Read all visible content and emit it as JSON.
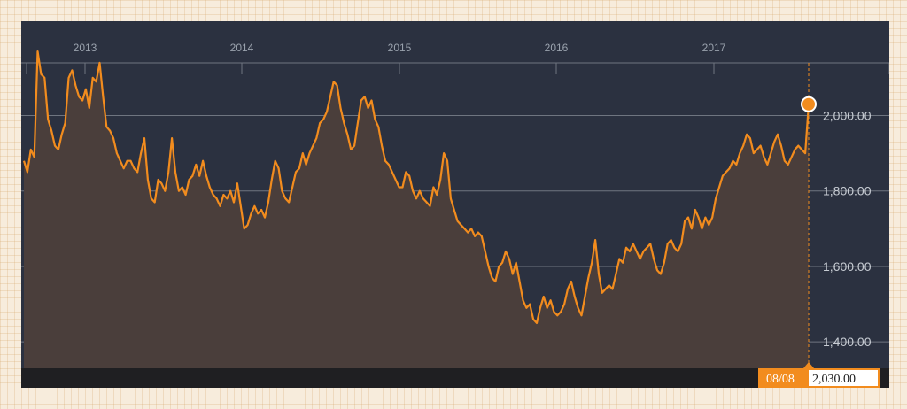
{
  "colors": {
    "panel_bg": "#2b3140",
    "axis_band": "#1f1f22",
    "line": "#f28c1e",
    "fill": "#4a3e3b",
    "grid": "#6f7580",
    "readout_bg": "#f28c1e"
  },
  "chart_data": {
    "type": "area",
    "title": "",
    "xlabel": "",
    "ylabel": "",
    "x_tick_labels": [
      "2013",
      "2014",
      "2015",
      "2016",
      "2017"
    ],
    "y_tick_labels": [
      "2,000.00",
      "1,800.00",
      "1,600.00",
      "1,400.00"
    ],
    "y_ticks": [
      2000,
      1800,
      1600,
      1400
    ],
    "ylim": [
      1330,
      2250
    ],
    "grid": true,
    "series": [
      {
        "values": [
          1880,
          1850,
          1910,
          1890,
          2170,
          2110,
          2100,
          1990,
          1960,
          1920,
          1910,
          1950,
          1980,
          2100,
          2120,
          2080,
          2050,
          2040,
          2070,
          2020,
          2100,
          2090,
          2140,
          2050,
          1970,
          1960,
          1940,
          1900,
          1880,
          1860,
          1880,
          1880,
          1860,
          1850,
          1900,
          1940,
          1830,
          1780,
          1770,
          1830,
          1820,
          1800,
          1850,
          1940,
          1850,
          1800,
          1810,
          1790,
          1830,
          1840,
          1870,
          1840,
          1880,
          1840,
          1810,
          1790,
          1780,
          1760,
          1790,
          1780,
          1800,
          1770,
          1820,
          1760,
          1700,
          1710,
          1740,
          1760,
          1740,
          1750,
          1730,
          1770,
          1830,
          1880,
          1860,
          1800,
          1780,
          1770,
          1810,
          1850,
          1860,
          1900,
          1870,
          1900,
          1920,
          1940,
          1980,
          1990,
          2010,
          2050,
          2090,
          2080,
          2020,
          1980,
          1950,
          1910,
          1920,
          1980,
          2040,
          2050,
          2020,
          2040,
          1990,
          1970,
          1920,
          1880,
          1870,
          1850,
          1830,
          1810,
          1810,
          1850,
          1840,
          1800,
          1780,
          1800,
          1780,
          1770,
          1760,
          1810,
          1790,
          1830,
          1900,
          1880,
          1780,
          1750,
          1720,
          1710,
          1700,
          1690,
          1700,
          1680,
          1690,
          1680,
          1640,
          1600,
          1570,
          1560,
          1600,
          1610,
          1640,
          1620,
          1580,
          1610,
          1560,
          1510,
          1490,
          1500,
          1460,
          1450,
          1490,
          1520,
          1490,
          1510,
          1480,
          1470,
          1480,
          1500,
          1540,
          1560,
          1520,
          1490,
          1470,
          1520,
          1570,
          1610,
          1670,
          1580,
          1530,
          1540,
          1550,
          1540,
          1580,
          1620,
          1610,
          1650,
          1640,
          1660,
          1640,
          1620,
          1640,
          1650,
          1660,
          1620,
          1590,
          1580,
          1610,
          1660,
          1670,
          1650,
          1640,
          1660,
          1720,
          1730,
          1700,
          1750,
          1730,
          1700,
          1730,
          1710,
          1730,
          1780,
          1810,
          1840,
          1850,
          1860,
          1880,
          1870,
          1900,
          1920,
          1950,
          1940,
          1900,
          1910,
          1920,
          1890,
          1870,
          1900,
          1930,
          1950,
          1920,
          1880,
          1870,
          1890,
          1910,
          1920,
          1910,
          1900,
          2030
        ]
      }
    ],
    "readout": {
      "date": "08/08",
      "value": "2,030.00"
    }
  }
}
